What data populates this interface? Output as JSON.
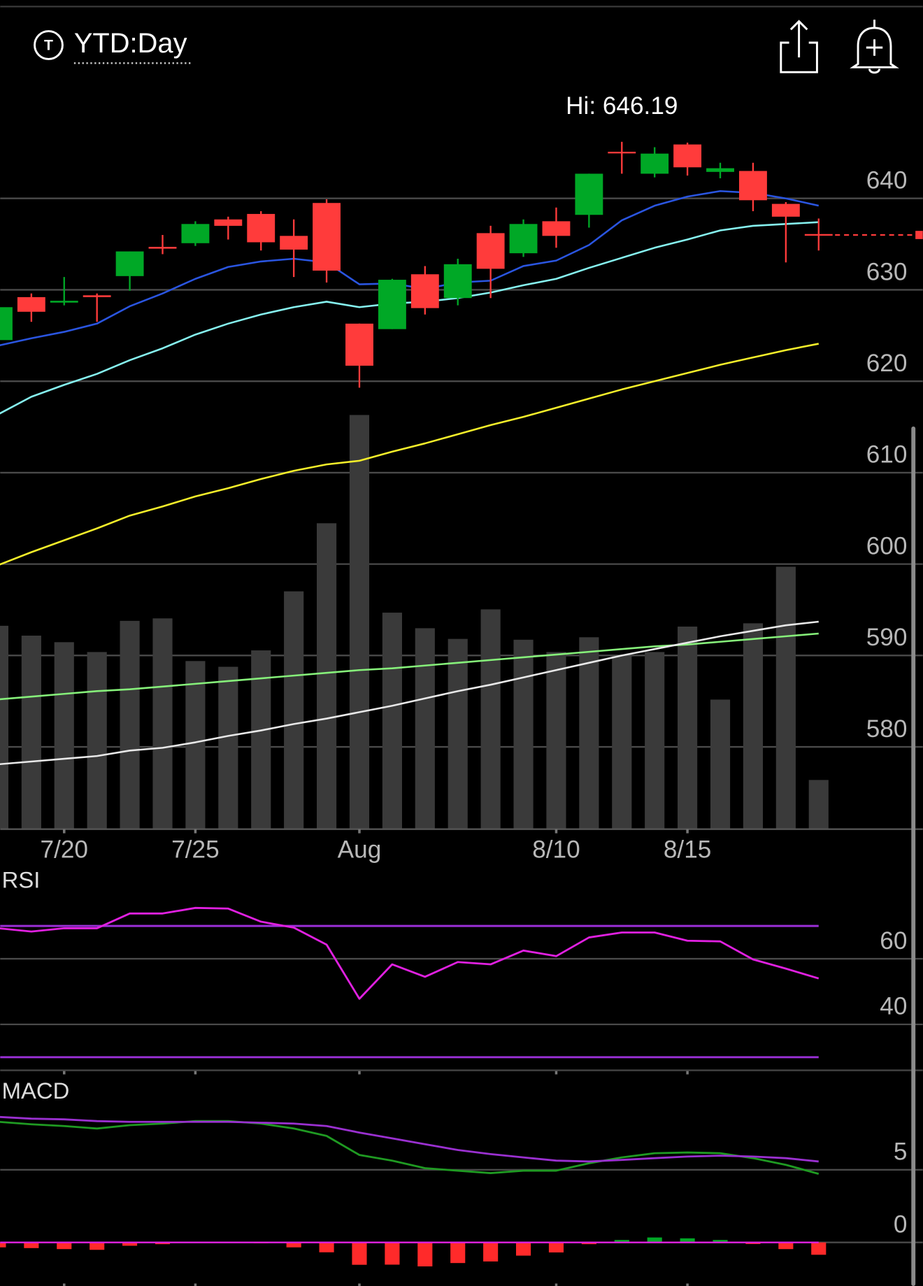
{
  "header": {
    "icon_letter": "T",
    "timeframe": "YTD:Day"
  },
  "chart_data": [
    {
      "type": "candlestick",
      "high_label": "Hi: 646.19",
      "categories": [
        null,
        null,
        "7/20",
        null,
        null,
        null,
        "7/25",
        null,
        null,
        null,
        null,
        "Aug",
        null,
        null,
        null,
        null,
        null,
        "8/10",
        null,
        null,
        null,
        "8/15",
        null,
        null,
        null,
        null
      ],
      "open": [
        624.5,
        629.2,
        628.6,
        629.4,
        631.5,
        634.7,
        635.1,
        637.7,
        638.3,
        635.9,
        639.5,
        626.3,
        625.7,
        631.7,
        629.1,
        636.2,
        634.0,
        637.5,
        638.2,
        645.1,
        642.7,
        645.9,
        642.9,
        643.0,
        639.4,
        636.1
      ],
      "high": [
        628.1,
        629.6,
        631.4,
        629.6,
        634.2,
        636.0,
        637.5,
        638.0,
        638.6,
        637.7,
        639.9,
        626.3,
        631.2,
        632.6,
        633.4,
        637.0,
        637.7,
        639.0,
        642.7,
        646.19,
        645.6,
        646.1,
        643.9,
        643.9,
        639.6,
        637.8
      ],
      "low": [
        624.5,
        626.5,
        628.3,
        626.5,
        629.9,
        633.9,
        634.8,
        635.5,
        634.3,
        631.4,
        630.8,
        619.3,
        625.7,
        627.3,
        628.3,
        629.1,
        633.6,
        634.6,
        636.8,
        642.7,
        642.3,
        642.5,
        642.2,
        638.6,
        633.0,
        634.3
      ],
      "close": [
        628.1,
        627.6,
        628.8,
        629.2,
        634.2,
        634.5,
        637.2,
        637.0,
        635.2,
        634.4,
        632.1,
        621.7,
        631.1,
        628.0,
        632.8,
        632.3,
        637.2,
        635.9,
        642.7,
        645.0,
        644.9,
        643.4,
        643.3,
        639.8,
        638.0,
        636.0
      ],
      "up_color": "#00a826",
      "down_color": "#ff3b3b",
      "series": [
        {
          "color": "#2a55e0",
          "values": [
            623.9,
            624.7,
            625.4,
            626.3,
            628.2,
            629.6,
            631.2,
            632.5,
            633.1,
            633.4,
            633.0,
            630.6,
            630.7,
            630.1,
            630.8,
            631.0,
            632.6,
            633.2,
            634.9,
            637.6,
            639.2,
            640.2,
            640.8,
            640.6,
            640.0,
            639.2
          ]
        },
        {
          "color": "#86f2f0",
          "values": [
            616.4,
            618.3,
            619.6,
            620.8,
            622.3,
            623.6,
            625.1,
            626.3,
            627.3,
            628.1,
            628.7,
            628.1,
            628.5,
            628.7,
            629.1,
            629.7,
            630.5,
            631.2,
            632.4,
            633.5,
            634.6,
            635.5,
            636.5,
            637.0,
            637.2,
            637.4
          ]
        },
        {
          "color": "#f4ee2a",
          "values": [
            599.9,
            601.3,
            602.6,
            603.9,
            605.3,
            606.3,
            607.4,
            608.3,
            609.3,
            610.2,
            610.9,
            611.3,
            612.3,
            613.2,
            614.2,
            615.2,
            616.1,
            617.1,
            618.1,
            619.1,
            620.0,
            620.9,
            621.8,
            622.6,
            623.4,
            624.1
          ]
        },
        {
          "color": "#86f07a",
          "values": [
            585.2,
            585.5,
            585.8,
            586.1,
            586.3,
            586.6,
            586.9,
            587.2,
            587.5,
            587.8,
            588.1,
            588.4,
            588.6,
            588.9,
            589.2,
            589.5,
            589.8,
            590.1,
            590.4,
            590.7,
            591.0,
            591.2,
            591.5,
            591.8,
            592.1,
            592.4
          ]
        },
        {
          "color": "#e8e8e8",
          "values": [
            578.1,
            578.4,
            578.7,
            579.0,
            579.6,
            579.9,
            580.5,
            581.2,
            581.8,
            582.5,
            583.1,
            583.8,
            584.5,
            585.3,
            586.1,
            586.8,
            587.6,
            588.4,
            589.2,
            590.0,
            590.7,
            591.4,
            592.1,
            592.7,
            593.3,
            593.7
          ]
        }
      ],
      "volume": {
        "color": "#3a3a3a",
        "vlim": [
          0,
          520
        ],
        "values": [
          247,
          235,
          227,
          215,
          253,
          256,
          204,
          197,
          217,
          289,
          372,
          504,
          263,
          244,
          231,
          267,
          230,
          215,
          233,
          210,
          215,
          246,
          157,
          250,
          319,
          59
        ]
      },
      "last_price_line": true,
      "ylim": [
        571,
        653
      ],
      "yticks": [
        580,
        590,
        600,
        610,
        620,
        630,
        640
      ],
      "grid": true
    },
    {
      "type": "line",
      "title": "RSI",
      "series": [
        {
          "color": "#e020e0",
          "values": [
            69.3,
            68.3,
            69.3,
            69.3,
            73.8,
            73.8,
            75.5,
            75.3,
            71.3,
            69.5,
            64.3,
            47.8,
            58.3,
            54.5,
            59.0,
            58.3,
            62.5,
            60.8,
            66.5,
            68.0,
            68.0,
            65.5,
            65.3,
            59.8,
            57.0,
            54.0
          ]
        }
      ],
      "levels": [
        70,
        30
      ],
      "level_color": "#9a2fd6",
      "ylim": [
        26,
        86
      ],
      "yticks": [
        40,
        60
      ],
      "grid": true
    },
    {
      "type": "macd",
      "title": "MACD",
      "series": [
        {
          "color": "#1f9a22",
          "values": [
            8.3,
            8.13,
            8.01,
            7.84,
            8.07,
            8.18,
            8.35,
            8.35,
            8.18,
            7.84,
            7.33,
            6.02,
            5.63,
            5.11,
            4.94,
            4.77,
            4.94,
            4.94,
            5.45,
            5.85,
            6.14,
            6.19,
            6.14,
            5.8,
            5.34,
            4.72
          ]
        },
        {
          "color": "#9a30d0",
          "values": [
            8.64,
            8.52,
            8.47,
            8.35,
            8.3,
            8.3,
            8.3,
            8.3,
            8.24,
            8.18,
            8.01,
            7.56,
            7.16,
            6.76,
            6.36,
            6.08,
            5.85,
            5.63,
            5.57,
            5.68,
            5.8,
            5.91,
            5.97,
            5.91,
            5.8,
            5.57
          ]
        }
      ],
      "histogram": {
        "up_color": "#00a826",
        "down_color": "#ff2a2a",
        "zero_color": "#e020e0",
        "values": [
          -0.34,
          -0.39,
          -0.46,
          -0.51,
          -0.23,
          -0.12,
          0.05,
          0.05,
          -0.06,
          -0.34,
          -0.68,
          -1.54,
          -1.53,
          -1.65,
          -1.42,
          -1.31,
          -0.91,
          -0.69,
          -0.12,
          0.17,
          0.34,
          0.28,
          0.17,
          -0.11,
          -0.46,
          -0.85
        ]
      },
      "ylim": [
        -3,
        11
      ],
      "yticks": [
        0,
        5
      ],
      "grid": true
    }
  ]
}
